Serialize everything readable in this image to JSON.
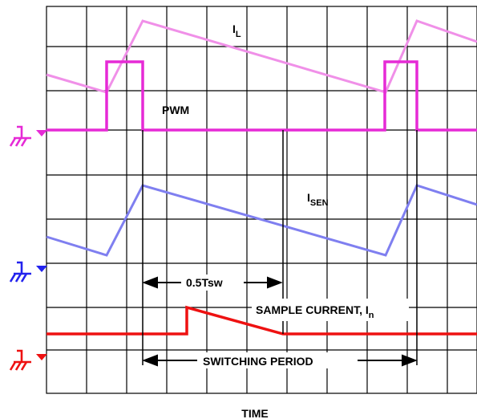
{
  "colors": {
    "grid": "#000000",
    "inductor_current": "#f090e8",
    "pwm": "#e62ad6",
    "sense_current": "#7f7ff0",
    "sample_current": "#ee1111",
    "pwm_ground_marker": "#e62ad6",
    "sense_ground_marker": "#2222ee",
    "sample_ground_marker": "#ee1111",
    "markers": "#000000"
  },
  "labels": {
    "il_main": "I",
    "il_sub": "L",
    "pwm": "PWM",
    "isen_main": "I",
    "isen_sub": "SEN",
    "half_period": "0.5Tsw",
    "sample_current_main": "SAMPLE CURRENT, I",
    "sample_current_sub": "n",
    "switching_period": "SWITCHING PERIOD",
    "x_axis": "TIME"
  },
  "icons": {
    "pwm_ground": "ground-symbol-icon",
    "sense_ground": "ground-symbol-icon",
    "sample_ground": "ground-symbol-icon"
  }
}
